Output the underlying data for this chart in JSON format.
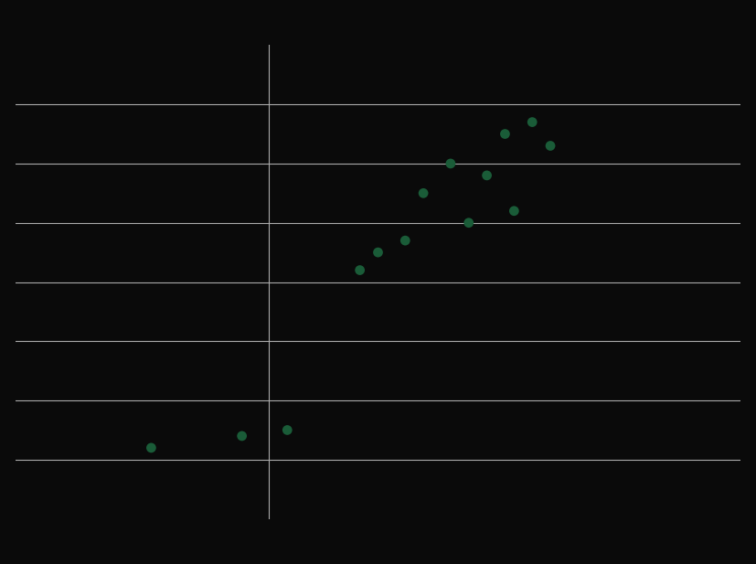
{
  "x_values": [
    1.5,
    2.5,
    3.0,
    3.8,
    4.0,
    4.3,
    4.5,
    4.8,
    5.0,
    5.2,
    5.4,
    5.5,
    5.7,
    5.9
  ],
  "y_values": [
    -1.8,
    -1.6,
    -1.5,
    1.2,
    1.5,
    1.7,
    2.5,
    3.0,
    2.0,
    2.8,
    3.5,
    2.2,
    3.7,
    3.3
  ],
  "dot_color": "#1a5c38",
  "background_color": "#0a0a0a",
  "grid_color": "#aaaaaa",
  "xlim": [
    0,
    8
  ],
  "ylim": [
    -3,
    5
  ],
  "x_ticks": [],
  "y_ticks": [],
  "dot_size": 60,
  "vline_x": 2.8,
  "grid_y_values": [
    -2,
    -1,
    0,
    1,
    2,
    3,
    4
  ]
}
